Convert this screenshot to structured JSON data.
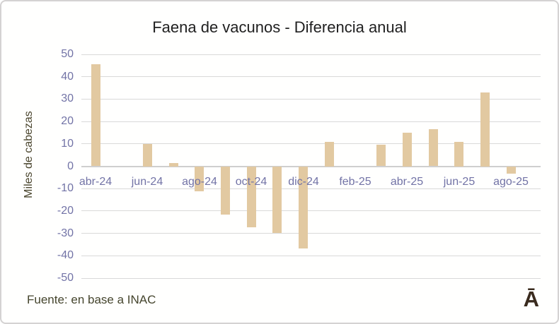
{
  "title": "Faena de vacunos - Diferencia anual",
  "ylabel": "Miles de cabezas",
  "source": "Fuente: en base a INAC",
  "logo_glyph": "Ā",
  "colors": {
    "background": "#fffffe",
    "border": "#d4d2d2",
    "title_text": "#1f1f1f",
    "axis_title_text": "#4b462e",
    "tick_text": "#7273a6",
    "grid": "#d9d9d9",
    "axis_line": "#cfcfcf",
    "bar": "#e2c9a1",
    "source_text": "#45452d",
    "logo_text": "#3a2b1e"
  },
  "chart_data": {
    "type": "bar",
    "title": "Faena de vacunos - Diferencia anual",
    "xlabel": "",
    "ylabel": "Miles de cabezas",
    "categories": [
      "abr-24",
      "may-24",
      "jun-24",
      "jul-24",
      "ago-24",
      "sep-24",
      "oct-24",
      "nov-24",
      "dic-24",
      "ene-25",
      "feb-25",
      "mar-25",
      "abr-25",
      "may-25",
      "jun-25",
      "jul-25",
      "ago-25"
    ],
    "values": [
      45.5,
      0,
      10,
      1.5,
      -11,
      -21.5,
      -27,
      -29.5,
      -36.5,
      11,
      0,
      9.5,
      15,
      16.5,
      11,
      33,
      -3
    ],
    "x_tick_labels": [
      "abr-24",
      "jun-24",
      "ago-24",
      "oct-24",
      "dic-24",
      "feb-25",
      "abr-25",
      "jun-25",
      "ago-25"
    ],
    "x_tick_every": 2,
    "y_ticks": [
      50,
      40,
      30,
      20,
      10,
      0,
      -10,
      -20,
      -30,
      -40,
      -50
    ],
    "ylim": [
      -50,
      50
    ],
    "grid": "horizontal",
    "legend": "none",
    "source": "Fuente: en base a INAC"
  }
}
